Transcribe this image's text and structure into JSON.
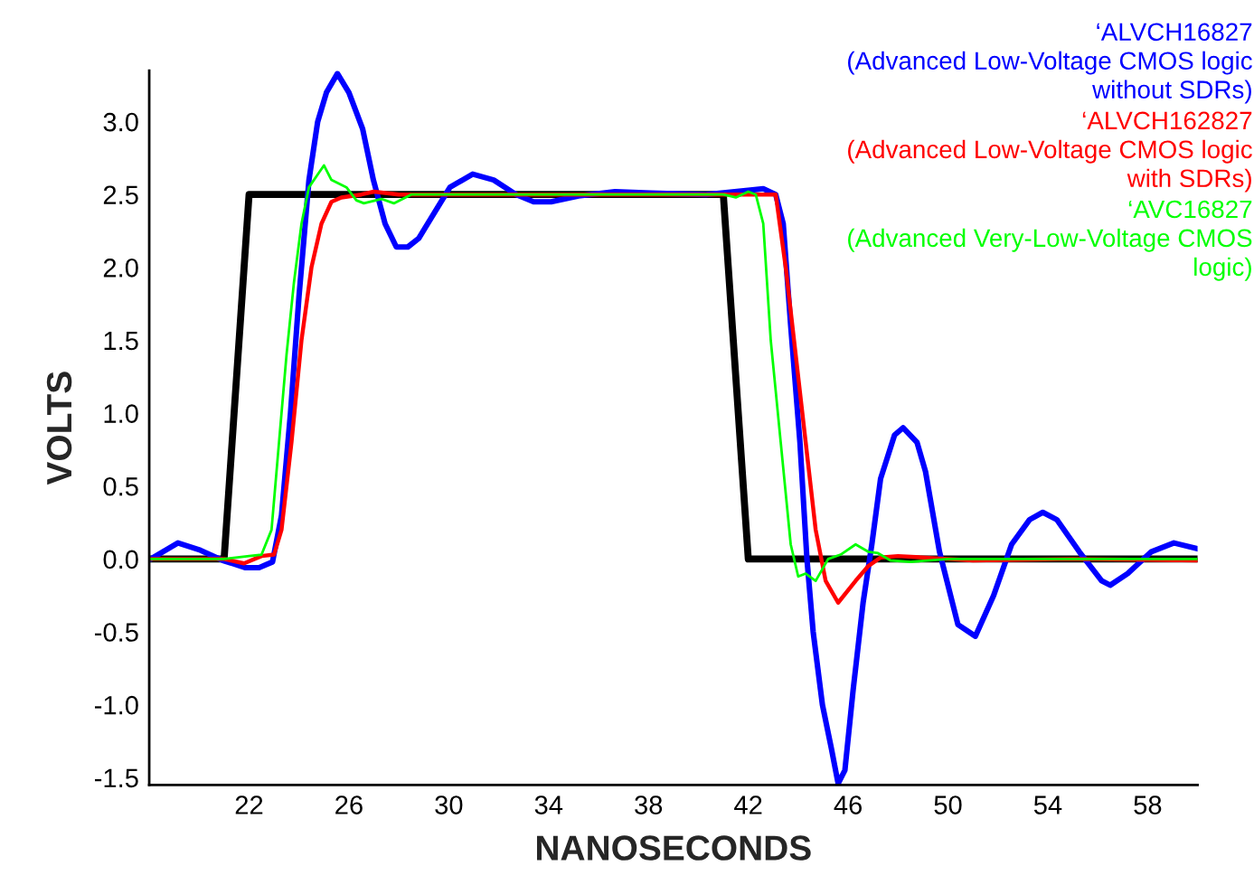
{
  "chart_data": {
    "type": "line",
    "xlabel": "NANOSECONDS",
    "ylabel": "VOLTS",
    "xlim": [
      18,
      60
    ],
    "ylim": [
      -1.55,
      3.35
    ],
    "xticks": [
      22,
      26,
      30,
      34,
      38,
      42,
      46,
      50,
      54,
      58
    ],
    "yticks": [
      {
        "value": -1.5,
        "label": "-1.5"
      },
      {
        "value": -1.0,
        "label": "-1.0"
      },
      {
        "value": -0.5,
        "label": "-0.5"
      },
      {
        "value": 0.0,
        "label": "0.0"
      },
      {
        "value": 0.5,
        "label": "0.5"
      },
      {
        "value": 1.0,
        "label": "1.0"
      },
      {
        "value": 1.5,
        "label": "1.5"
      },
      {
        "value": 2.0,
        "label": "2.0"
      },
      {
        "value": 2.5,
        "label": "2.5"
      },
      {
        "value": 3.0,
        "label": "3.0"
      }
    ],
    "grid": false,
    "legend": "top right",
    "line_style": "solid",
    "marker": "none",
    "series": [
      {
        "color": "#000000",
        "x": [
          18,
          21,
          22,
          41,
          42,
          60
        ],
        "values": [
          0,
          0,
          2.5,
          2.5,
          0,
          0
        ]
      },
      {
        "name": "‘ALVCH16827\n(Advanced Low-Voltage CMOS logic\nwithout SDRs)",
        "color": "#0000ff",
        "x": [
          18.06,
          19.15,
          20.05,
          20.95,
          21.86,
          22.4,
          22.94,
          23.3,
          23.66,
          24.0,
          24.4,
          24.75,
          25.1,
          25.54,
          26.0,
          26.55,
          26.98,
          27.45,
          27.9,
          28.36,
          28.8,
          29.44,
          30.05,
          30.96,
          31.8,
          32.7,
          33.4,
          34.1,
          35.2,
          36.66,
          38.1,
          40.3,
          42.08,
          42.6,
          43.1,
          43.4,
          43.7,
          44.07,
          44.35,
          44.6,
          44.97,
          45.33,
          45.6,
          45.87,
          46.2,
          46.6,
          46.95,
          47.3,
          47.86,
          48.2,
          48.76,
          49.1,
          49.66,
          50.4,
          51.1,
          51.83,
          52.55,
          53.27,
          53.8,
          54.36,
          55.26,
          56.16,
          56.5,
          57.2,
          58.15,
          59.05,
          60
        ],
        "values": [
          0,
          0.11,
          0.06,
          -0.01,
          -0.06,
          -0.06,
          -0.02,
          0.3,
          1.0,
          1.8,
          2.6,
          3.0,
          3.2,
          3.33,
          3.2,
          2.95,
          2.6,
          2.3,
          2.14,
          2.14,
          2.2,
          2.38,
          2.55,
          2.64,
          2.6,
          2.5,
          2.45,
          2.45,
          2.49,
          2.52,
          2.51,
          2.5,
          2.53,
          2.54,
          2.5,
          2.3,
          1.6,
          0.8,
          0,
          -0.5,
          -1.0,
          -1.3,
          -1.54,
          -1.45,
          -0.9,
          -0.3,
          0.1,
          0.55,
          0.85,
          0.9,
          0.8,
          0.6,
          0.05,
          -0.45,
          -0.53,
          -0.25,
          0.1,
          0.27,
          0.32,
          0.27,
          0.05,
          -0.15,
          -0.18,
          -0.1,
          0.05,
          0.11,
          0.07
        ]
      },
      {
        "name": "‘ALVCH162827\n(Advanced Low-Voltage CMOS logic\nwith SDRs)",
        "color": "#ff0000",
        "x": [
          18,
          21,
          21.8,
          22.5,
          23.0,
          23.3,
          23.7,
          24.1,
          24.5,
          24.9,
          25.3,
          25.7,
          26.5,
          27,
          28,
          30,
          35,
          42,
          43.1,
          43.5,
          43.9,
          44.3,
          44.7,
          45.1,
          45.6,
          46.3,
          46.8,
          47.3,
          48,
          50,
          51,
          55,
          60
        ],
        "values": [
          0,
          0,
          -0.03,
          0.02,
          0.03,
          0.2,
          0.8,
          1.5,
          2.0,
          2.3,
          2.45,
          2.48,
          2.5,
          2.52,
          2.5,
          2.5,
          2.5,
          2.5,
          2.5,
          2.0,
          1.4,
          0.8,
          0.2,
          -0.15,
          -0.3,
          -0.15,
          -0.05,
          0.01,
          0.02,
          0.0,
          -0.01,
          0.0,
          -0.01
        ]
      },
      {
        "name": "‘AVC16827\n(Advanced Very-Low-Voltage CMOS\nlogic)",
        "color": "#00ff00",
        "x": [
          18,
          21,
          22,
          22.5,
          22.9,
          23.2,
          23.5,
          23.8,
          24.1,
          24.4,
          24.8,
          25.0,
          25.3,
          25.9,
          26.3,
          26.6,
          27.3,
          27.8,
          28.5,
          29.5,
          34,
          41,
          41.5,
          42,
          42.3,
          42.6,
          42.9,
          43.3,
          43.7,
          44.0,
          44.3,
          44.7,
          45.2,
          45.7,
          46.3,
          46.8,
          47.2,
          47.7,
          48.5,
          50,
          55,
          60
        ],
        "values": [
          0,
          0,
          0.02,
          0.03,
          0.2,
          0.8,
          1.4,
          1.9,
          2.3,
          2.55,
          2.65,
          2.7,
          2.6,
          2.55,
          2.46,
          2.44,
          2.47,
          2.44,
          2.5,
          2.5,
          2.5,
          2.5,
          2.48,
          2.52,
          2.5,
          2.3,
          1.5,
          0.8,
          0.1,
          -0.12,
          -0.1,
          -0.15,
          0.0,
          0.03,
          0.1,
          0.05,
          0.04,
          -0.01,
          -0.02,
          0.0,
          0.0,
          0.0
        ]
      }
    ]
  }
}
